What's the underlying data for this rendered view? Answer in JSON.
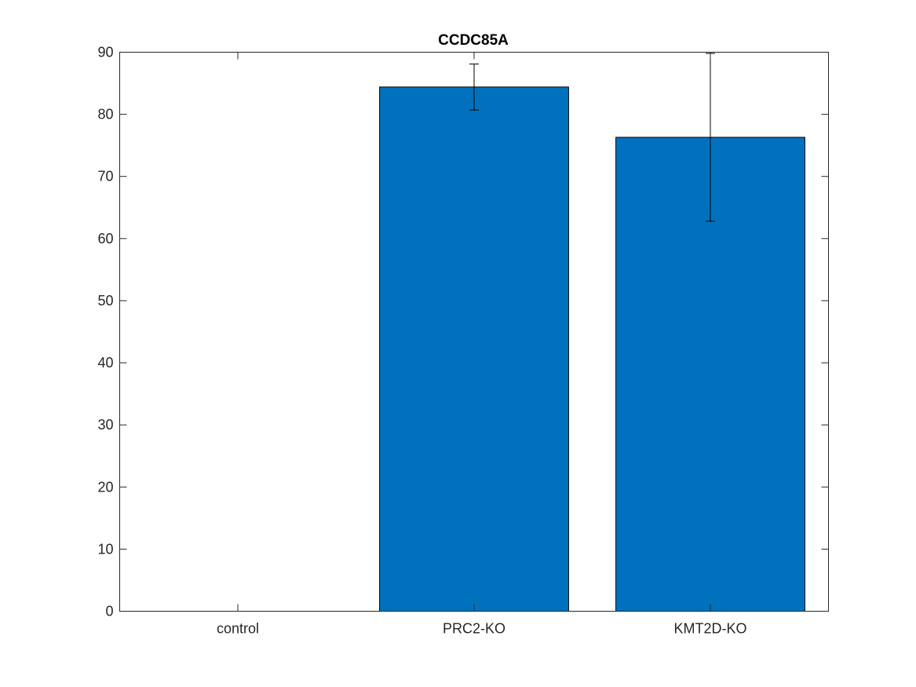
{
  "chart_data": {
    "type": "bar",
    "title": "CCDC85A",
    "xlabel": "",
    "ylabel": "",
    "categories": [
      "control",
      "PRC2-KO",
      "KMT2D-KO"
    ],
    "values": [
      0,
      84.4,
      76.3
    ],
    "error_lower": [
      0,
      3.7,
      13.5
    ],
    "error_upper": [
      0,
      3.7,
      13.5
    ],
    "ylim": [
      0,
      90
    ],
    "yticks": [
      0,
      10,
      20,
      30,
      40,
      50,
      60,
      70,
      80,
      90
    ],
    "grid": false,
    "legend": "none",
    "colors": {
      "bar_fill": "#0072BD",
      "bar_edge": "#000000",
      "axes": "#262626",
      "errorbar": "#000000"
    }
  }
}
